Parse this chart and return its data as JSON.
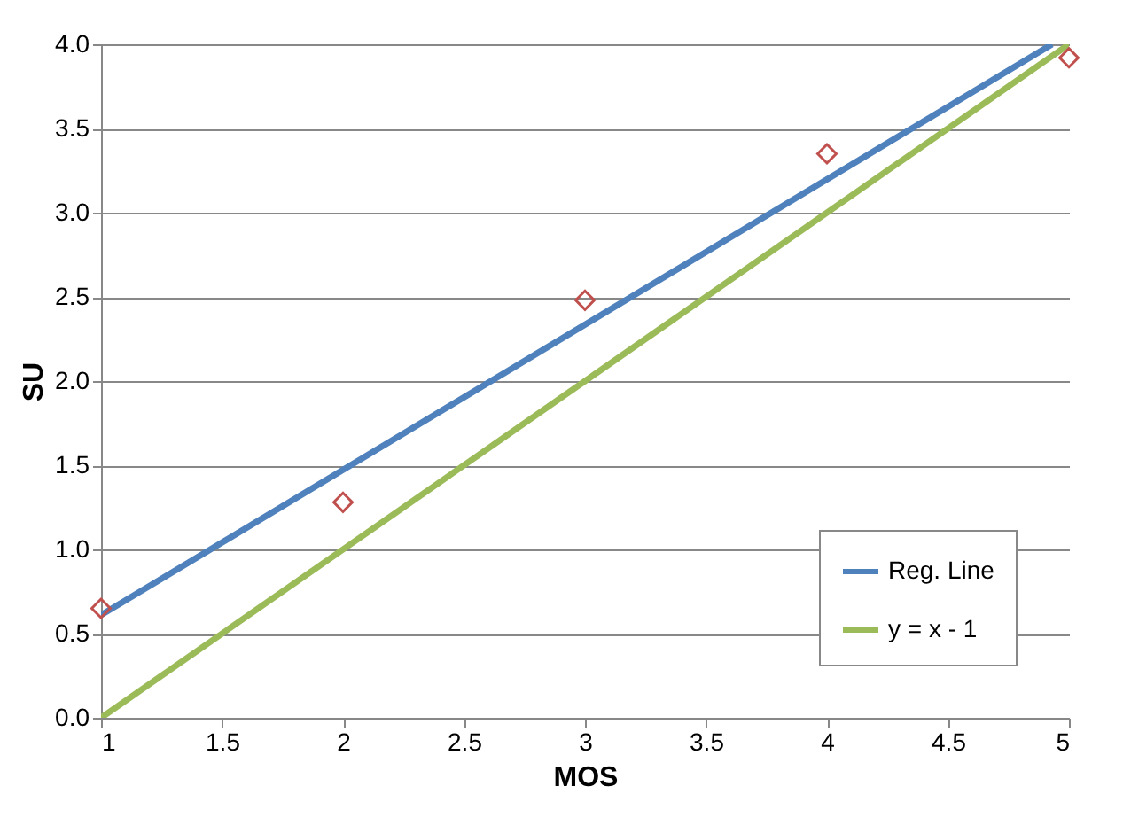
{
  "chart_data": {
    "type": "scatter",
    "xlabel": "MOS",
    "ylabel": "SU",
    "xlim": [
      1,
      5
    ],
    "xticks": [
      1,
      1.5,
      2,
      2.5,
      3,
      3.5,
      4,
      4.5,
      5
    ],
    "ylim": [
      0,
      4
    ],
    "yticks": [
      {
        "value": 0,
        "label": "0.0"
      },
      0.5,
      {
        "value": 1,
        "label": "1.0"
      },
      1.5,
      {
        "value": 2,
        "label": "2.0"
      },
      2.5,
      {
        "value": 3,
        "label": "3.0"
      },
      3.5,
      {
        "value": 4,
        "label": "4.0"
      }
    ],
    "grid": "y",
    "legend": "bottom right",
    "series": [
      {
        "marker": "diamond",
        "color": "#c0504d",
        "x": [
          1,
          2,
          3,
          4,
          5
        ],
        "values": [
          0.65,
          1.28,
          2.48,
          3.35,
          3.92
        ]
      },
      {
        "type": "line",
        "name": "Reg. Line",
        "color": "#4f81bd",
        "x": [
          1,
          4.93
        ],
        "values": [
          0.61,
          4.0
        ]
      },
      {
        "type": "line",
        "name": "y = x - 1",
        "color": "#9bbb59",
        "x": [
          1,
          5
        ],
        "values": [
          0,
          4
        ]
      }
    ]
  }
}
